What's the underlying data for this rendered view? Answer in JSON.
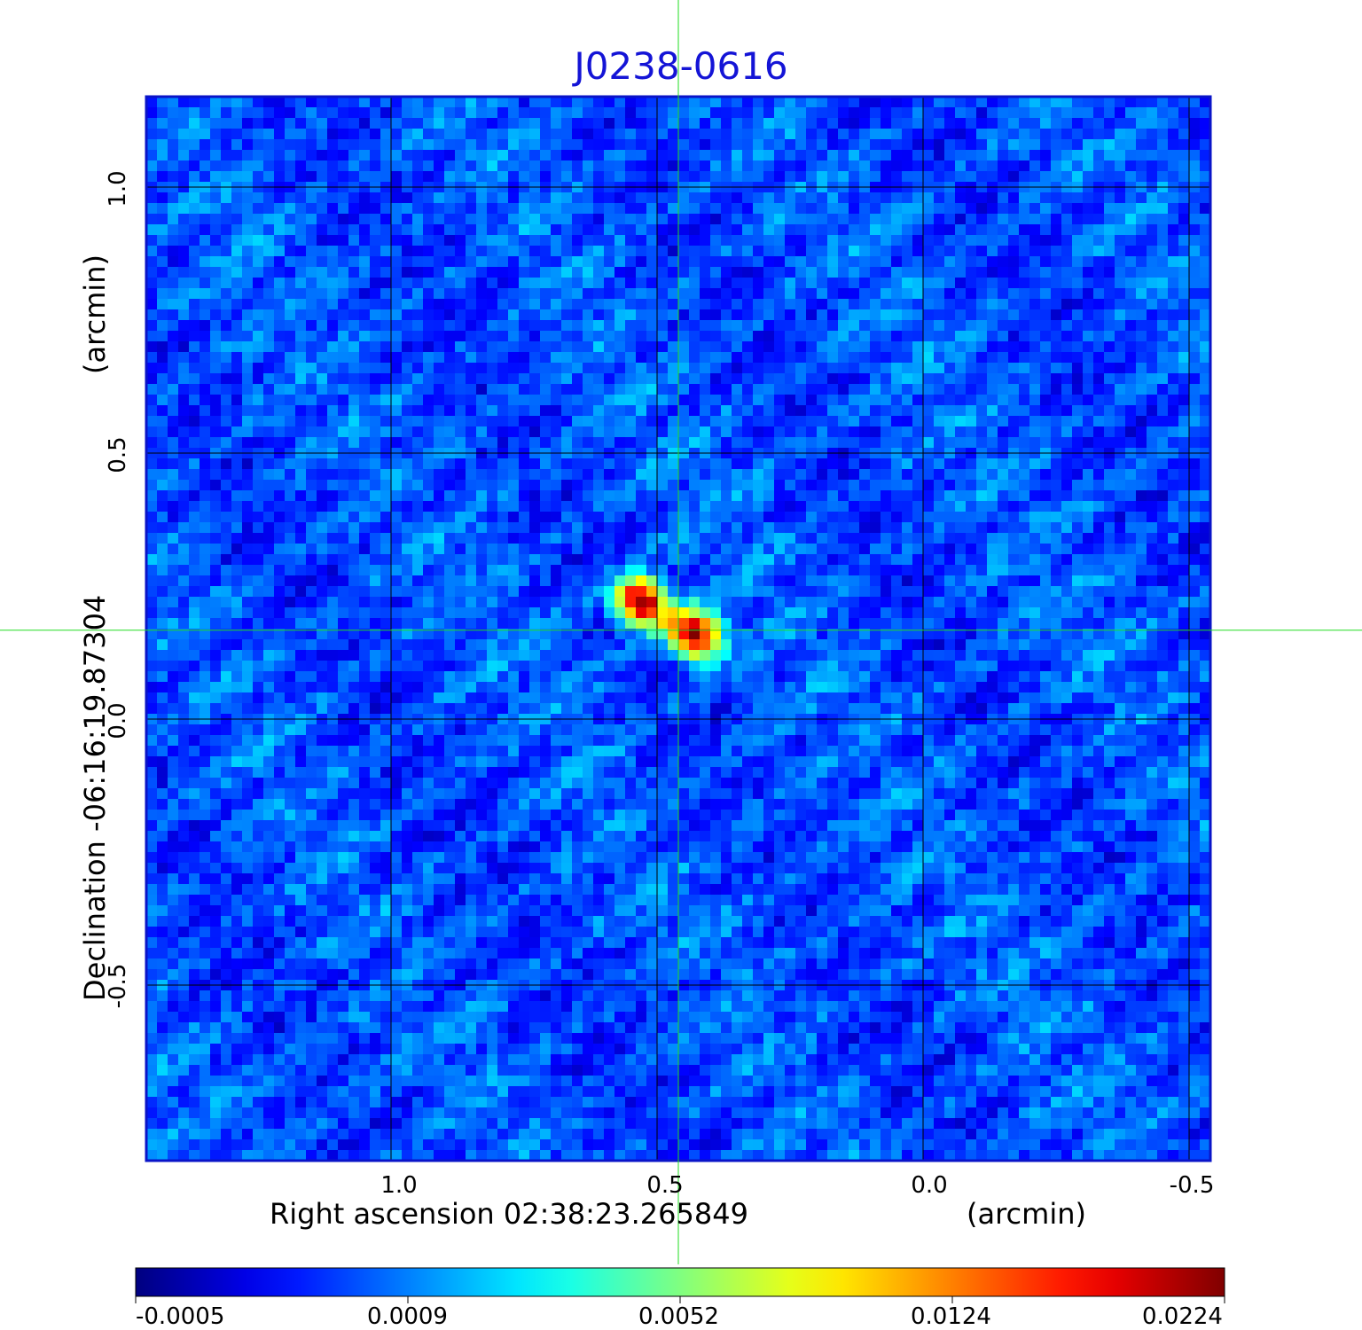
{
  "title": "J0238-0616",
  "x_axis": {
    "label": "Right ascension  02:38:23.265849",
    "unit": "(arcmin)",
    "ticks": [
      "1.0",
      "0.5",
      "0.0",
      "-0.5"
    ],
    "range": [
      1.46,
      -0.54
    ]
  },
  "y_axis": {
    "label": "Declination  -06:16:19.87304",
    "unit": "(arcmin)",
    "ticks": [
      "1.0",
      "0.5",
      "0.0",
      "-0.5"
    ],
    "range": [
      -0.83,
      1.17
    ]
  },
  "crosshair": {
    "x": 0.46,
    "y": 0.167,
    "color": "#22dd22"
  },
  "grid": true,
  "colorbar": {
    "colormap": "jet",
    "tick_labels": [
      "-0.0005",
      "0.0009",
      "0.0052",
      "0.0124",
      "0.0224"
    ],
    "min": -0.0005,
    "max": 0.0224
  },
  "source": {
    "peak_value": 0.0224,
    "components": [
      {
        "ra_offset": 0.53,
        "dec_offset": 0.22
      },
      {
        "ra_offset": 0.43,
        "dec_offset": 0.16
      }
    ]
  },
  "colors": {
    "title": "#1414d6",
    "frame": "#0a14c8",
    "grid": "#000000"
  }
}
